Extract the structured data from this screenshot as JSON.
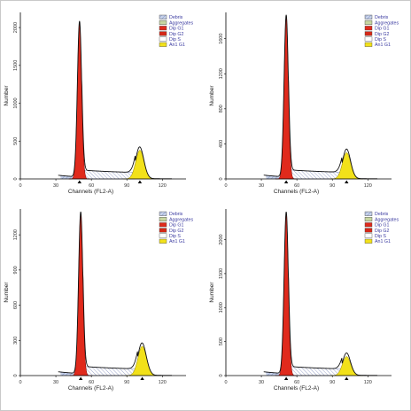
{
  "figure": {
    "colors": {
      "dip_g1": "#e02a1c",
      "dip_g2": "#d42818",
      "aneuploid_g1": "#f2e11a",
      "debris_fill": "#c7d2ea",
      "debris_hatch": "#6b7db8",
      "aggregates": "#c7d6a0",
      "dip_s_hatch": "#5a6aa8",
      "envelope": "#111111",
      "legend_text": "#3a3aa0"
    }
  },
  "chart_data": [
    {
      "type": "area",
      "xlabel": "Channels (FL2-A)",
      "ylabel": "Number",
      "xlim": [
        0,
        140
      ],
      "ylim": [
        0,
        2200
      ],
      "xticks": [
        "0",
        "30",
        "60",
        "90",
        "120"
      ],
      "yticks": [
        "0",
        "500",
        "1000",
        "1500",
        "2000"
      ],
      "ytick_values": [
        0,
        500,
        1000,
        1500,
        2000
      ],
      "legend": [
        "Debris",
        "Aggregates",
        "Dip G1",
        "Dip G2",
        "Dip S",
        "An1 G1"
      ],
      "legend_position": "top-right",
      "peaks": [
        {
          "series": "Dip G1",
          "center": 50,
          "height": 2060,
          "sigma": 1.8
        },
        {
          "series": "An1 G1",
          "center": 101,
          "height": 380,
          "sigma": 3.5
        }
      ],
      "markers": [
        50,
        101
      ]
    },
    {
      "type": "area",
      "xlabel": "Channels (FL2-A)",
      "ylabel": "Number",
      "xlim": [
        0,
        140
      ],
      "ylim": [
        0,
        1900
      ],
      "xticks": [
        "0",
        "30",
        "60",
        "90",
        "120"
      ],
      "yticks": [
        "0",
        "400",
        "800",
        "1200",
        "1600"
      ],
      "ytick_values": [
        0,
        400,
        800,
        1200,
        1600
      ],
      "legend": [
        "Debris",
        "Aggregates",
        "Dip G1",
        "Dip G2",
        "Dip S",
        "An1 G1"
      ],
      "legend_position": "top-right",
      "peaks": [
        {
          "series": "Dip G1",
          "center": 51,
          "height": 1850,
          "sigma": 1.8
        },
        {
          "series": "An1 G1",
          "center": 102,
          "height": 300,
          "sigma": 3.5
        }
      ],
      "markers": [
        51,
        102
      ]
    },
    {
      "type": "area",
      "xlabel": "Channels (FL2-A)",
      "ylabel": "Number",
      "xlim": [
        0,
        140
      ],
      "ylim": [
        0,
        1420
      ],
      "xticks": [
        "0",
        "30",
        "60",
        "90",
        "120"
      ],
      "yticks": [
        "0",
        "300",
        "600",
        "900",
        "1200"
      ],
      "ytick_values": [
        0,
        300,
        600,
        900,
        1200
      ],
      "legend": [
        "Debris",
        "Aggregates",
        "Dip G1",
        "Dip G2",
        "Dip S",
        "An1 G1"
      ],
      "legend_position": "top-right",
      "peaks": [
        {
          "series": "Dip G1",
          "center": 51,
          "height": 1380,
          "sigma": 1.8
        },
        {
          "series": "An1 G1",
          "center": 103,
          "height": 250,
          "sigma": 3.6
        }
      ],
      "markers": [
        51,
        103
      ]
    },
    {
      "type": "area",
      "xlabel": "Channels (FL2-A)",
      "ylabel": "Number",
      "xlim": [
        0,
        140
      ],
      "ylim": [
        0,
        2450
      ],
      "xticks": [
        "0",
        "30",
        "60",
        "90",
        "120"
      ],
      "yticks": [
        "0",
        "500",
        "1000",
        "1500",
        "2000"
      ],
      "ytick_values": [
        0,
        500,
        1000,
        1500,
        2000
      ],
      "legend": [
        "Debris",
        "Aggregates",
        "Dip G1",
        "Dip G2",
        "Dip S",
        "An1 G1"
      ],
      "legend_position": "top-right",
      "peaks": [
        {
          "series": "Dip G1",
          "center": 51,
          "height": 2380,
          "sigma": 1.8
        },
        {
          "series": "An1 G1",
          "center": 102,
          "height": 280,
          "sigma": 3.5
        }
      ],
      "markers": [
        51,
        102
      ]
    }
  ]
}
